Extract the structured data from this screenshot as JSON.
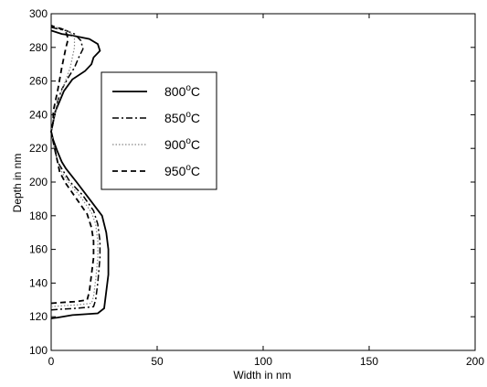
{
  "chart_data": {
    "type": "line",
    "title": "",
    "xlabel": "Width in nm",
    "ylabel": "Depth in nm",
    "xlim": [
      0,
      200
    ],
    "ylim": [
      100,
      300
    ],
    "xticks": [
      0,
      50,
      100,
      150,
      200
    ],
    "yticks": [
      100,
      120,
      140,
      160,
      180,
      200,
      220,
      240,
      260,
      280,
      300
    ],
    "grid": false,
    "legend_position": "upper-middle-left",
    "series": [
      {
        "name": "800",
        "unit": "°C",
        "line_style": "solid",
        "color": "#000000",
        "points": [
          [
            0,
            119
          ],
          [
            3,
            119.5
          ],
          [
            10,
            121
          ],
          [
            22,
            122
          ],
          [
            25,
            125
          ],
          [
            26,
            135
          ],
          [
            27,
            145
          ],
          [
            27,
            160
          ],
          [
            26,
            170
          ],
          [
            24,
            180
          ],
          [
            18,
            190
          ],
          [
            12,
            200
          ],
          [
            7,
            208
          ],
          [
            5,
            212
          ],
          [
            3,
            218
          ],
          [
            1,
            225
          ],
          [
            0,
            230
          ],
          [
            1,
            236
          ],
          [
            2,
            242
          ],
          [
            4,
            248
          ],
          [
            6,
            254
          ],
          [
            10,
            261
          ],
          [
            16,
            266
          ],
          [
            19,
            270
          ],
          [
            20,
            274
          ],
          [
            23,
            278
          ],
          [
            22,
            282
          ],
          [
            18,
            285
          ],
          [
            10,
            287
          ],
          [
            5,
            288
          ],
          [
            0,
            290
          ]
        ]
      },
      {
        "name": "850",
        "unit": "°C",
        "line_style": "dashdot",
        "color": "#000000",
        "points": [
          [
            0,
            124
          ],
          [
            5,
            124.5
          ],
          [
            12,
            125
          ],
          [
            20,
            126
          ],
          [
            21,
            130
          ],
          [
            22,
            140
          ],
          [
            23,
            155
          ],
          [
            23,
            165
          ],
          [
            22,
            175
          ],
          [
            20,
            183
          ],
          [
            15,
            192
          ],
          [
            9,
            200
          ],
          [
            6,
            206
          ],
          [
            3,
            212
          ],
          [
            2,
            218
          ],
          [
            1,
            224
          ],
          [
            0,
            230
          ],
          [
            1,
            236
          ],
          [
            2,
            242
          ],
          [
            3,
            248
          ],
          [
            5,
            255
          ],
          [
            8,
            262
          ],
          [
            11,
            268
          ],
          [
            13,
            274
          ],
          [
            15,
            279
          ],
          [
            14,
            284
          ],
          [
            11,
            288
          ],
          [
            7,
            290
          ],
          [
            3,
            291
          ],
          [
            0,
            292
          ]
        ]
      },
      {
        "name": "900",
        "unit": "°C",
        "line_style": "dotted",
        "color": "#000000",
        "points": [
          [
            0,
            126
          ],
          [
            5,
            126.5
          ],
          [
            12,
            127
          ],
          [
            19,
            128
          ],
          [
            20,
            132
          ],
          [
            21,
            142
          ],
          [
            22,
            155
          ],
          [
            22,
            165
          ],
          [
            21,
            175
          ],
          [
            19,
            182
          ],
          [
            14,
            191
          ],
          [
            8,
            200
          ],
          [
            5,
            206
          ],
          [
            3,
            212
          ],
          [
            2,
            218
          ],
          [
            1,
            224
          ],
          [
            0,
            230
          ],
          [
            1,
            236
          ],
          [
            2,
            242
          ],
          [
            3,
            248
          ],
          [
            5,
            254
          ],
          [
            7,
            261
          ],
          [
            9,
            268
          ],
          [
            10,
            274
          ],
          [
            11,
            280
          ],
          [
            11,
            285
          ],
          [
            9,
            289
          ],
          [
            6,
            291
          ],
          [
            2,
            292
          ],
          [
            0,
            293
          ]
        ]
      },
      {
        "name": "950",
        "unit": "°C",
        "line_style": "dashed",
        "color": "#000000",
        "points": [
          [
            0,
            128
          ],
          [
            5,
            128.5
          ],
          [
            12,
            129
          ],
          [
            17,
            130
          ],
          [
            18,
            135
          ],
          [
            19,
            145
          ],
          [
            20,
            155
          ],
          [
            20,
            165
          ],
          [
            19,
            173
          ],
          [
            17,
            181
          ],
          [
            12,
            190
          ],
          [
            7,
            199
          ],
          [
            4,
            206
          ],
          [
            3,
            212
          ],
          [
            2,
            218
          ],
          [
            1,
            224
          ],
          [
            0,
            230
          ],
          [
            1,
            236
          ],
          [
            1,
            242
          ],
          [
            2,
            248
          ],
          [
            3,
            254
          ],
          [
            4,
            261
          ],
          [
            5,
            268
          ],
          [
            6,
            274
          ],
          [
            7,
            280
          ],
          [
            8,
            285
          ],
          [
            7,
            289
          ],
          [
            5,
            291
          ],
          [
            2,
            292
          ],
          [
            0,
            293
          ]
        ]
      }
    ]
  }
}
